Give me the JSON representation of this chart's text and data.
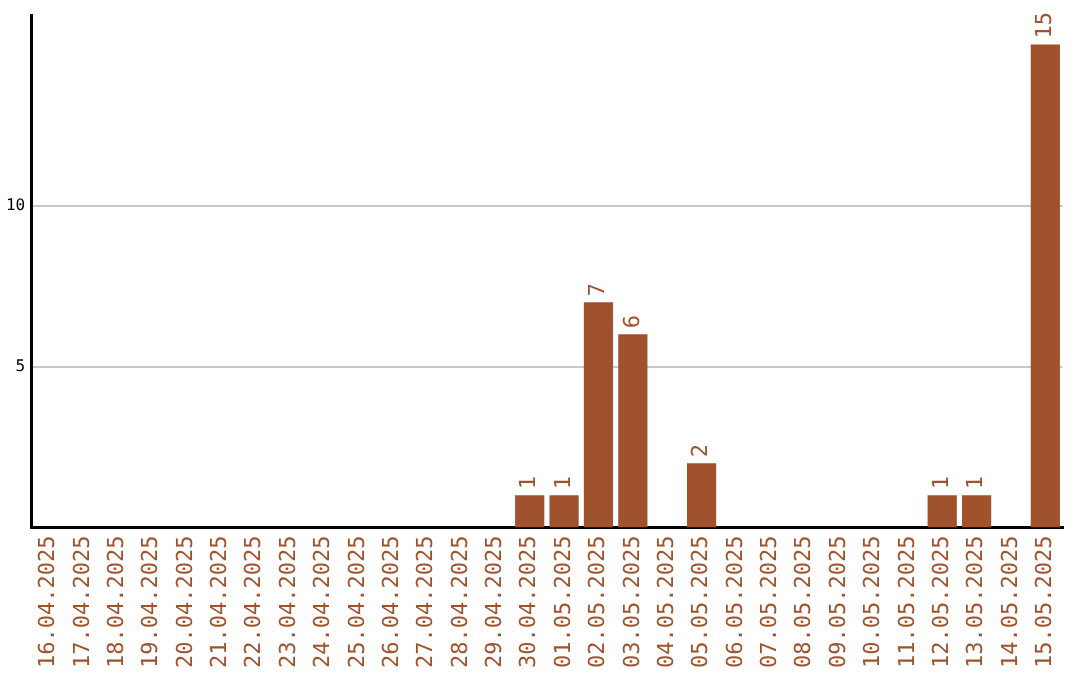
{
  "chart_data": {
    "type": "bar",
    "categories": [
      "16.04.2025",
      "17.04.2025",
      "18.04.2025",
      "19.04.2025",
      "20.04.2025",
      "21.04.2025",
      "22.04.2025",
      "23.04.2025",
      "24.04.2025",
      "25.04.2025",
      "26.04.2025",
      "27.04.2025",
      "28.04.2025",
      "29.04.2025",
      "30.04.2025",
      "01.05.2025",
      "02.05.2025",
      "03.05.2025",
      "04.05.2025",
      "05.05.2025",
      "06.05.2025",
      "07.05.2025",
      "08.05.2025",
      "09.05.2025",
      "10.05.2025",
      "11.05.2025",
      "12.05.2025",
      "13.05.2025",
      "14.05.2025",
      "15.05.2025"
    ],
    "values": [
      0,
      0,
      0,
      0,
      0,
      0,
      0,
      0,
      0,
      0,
      0,
      0,
      0,
      0,
      1,
      1,
      7,
      6,
      0,
      2,
      0,
      0,
      0,
      0,
      0,
      0,
      1,
      1,
      0,
      15
    ],
    "value_labels": [
      null,
      null,
      null,
      null,
      null,
      null,
      null,
      null,
      null,
      null,
      null,
      null,
      null,
      null,
      "1",
      "1",
      "7",
      "6",
      null,
      "2",
      null,
      null,
      null,
      null,
      null,
      null,
      "1",
      "1",
      null,
      "15"
    ],
    "color": "#a0522d",
    "ylim": [
      0,
      15.9
    ],
    "yticks": [
      5,
      10
    ],
    "grid": "y"
  }
}
